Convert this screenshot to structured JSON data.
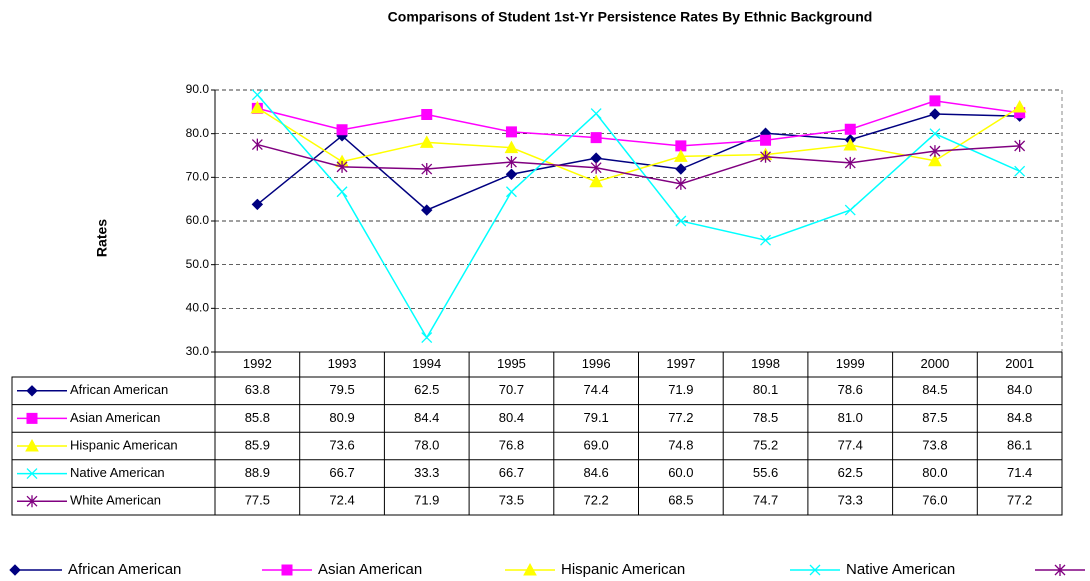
{
  "chart_data": {
    "type": "line",
    "title": "Comparisons of Student 1st-Yr Persistence Rates By Ethnic Background",
    "y_label": "Rates",
    "categories": [
      "1992",
      "1993",
      "1994",
      "1995",
      "1996",
      "1997",
      "1998",
      "1999",
      "2000",
      "2001"
    ],
    "ylim": [
      30,
      90
    ],
    "yticks": [
      {
        "value": 30,
        "label": "30.0"
      },
      {
        "value": 40,
        "label": "40.0"
      },
      {
        "value": 50,
        "label": "50.0"
      },
      {
        "value": 60,
        "label": "60.0"
      },
      {
        "value": 70,
        "label": "70.0"
      },
      {
        "value": 80,
        "label": "80.0"
      },
      {
        "value": 90,
        "label": "90.0"
      }
    ],
    "grid": true,
    "legend": "bottom",
    "series": [
      {
        "name": "African American",
        "color": "#000080",
        "marker": "diamond",
        "values": [
          63.8,
          79.5,
          62.5,
          70.7,
          74.4,
          71.9,
          80.1,
          78.6,
          84.5,
          84
        ],
        "value_labels": [
          "63.8",
          "79.5",
          "62.5",
          "70.7",
          "74.4",
          "71.9",
          "80.1",
          "78.6",
          "84.5",
          "84.0"
        ]
      },
      {
        "name": "Asian American",
        "color": "#ff00ff",
        "marker": "square",
        "values": [
          85.8,
          80.9,
          84.4,
          80.4,
          79.1,
          77.2,
          78.5,
          81,
          87.5,
          84.8
        ],
        "value_labels": [
          "85.8",
          "80.9",
          "84.4",
          "80.4",
          "79.1",
          "77.2",
          "78.5",
          "81.0",
          "87.5",
          "84.8"
        ]
      },
      {
        "name": "Hispanic American",
        "color": "#ffff00",
        "marker": "triangle",
        "values": [
          85.9,
          73.6,
          78,
          76.8,
          69,
          74.8,
          75.2,
          77.4,
          73.8,
          86.1
        ],
        "value_labels": [
          "85.9",
          "73.6",
          "78.0",
          "76.8",
          "69.0",
          "74.8",
          "75.2",
          "77.4",
          "73.8",
          "86.1"
        ]
      },
      {
        "name": "Native American",
        "color": "#00ffff",
        "marker": "x",
        "values": [
          88.9,
          66.7,
          33.3,
          66.7,
          84.6,
          60,
          55.6,
          62.5,
          80,
          71.4
        ],
        "value_labels": [
          "88.9",
          "66.7",
          "33.3",
          "66.7",
          "84.6",
          "60.0",
          "55.6",
          "62.5",
          "80.0",
          "71.4"
        ]
      },
      {
        "name": "White American",
        "color": "#800080",
        "marker": "star",
        "values": [
          77.5,
          72.4,
          71.9,
          73.5,
          72.2,
          68.5,
          74.7,
          73.3,
          76,
          77.2
        ],
        "value_labels": [
          "77.5",
          "72.4",
          "71.9",
          "73.5",
          "72.2",
          "68.5",
          "74.7",
          "73.3",
          "76.0",
          "77.2"
        ]
      }
    ]
  }
}
